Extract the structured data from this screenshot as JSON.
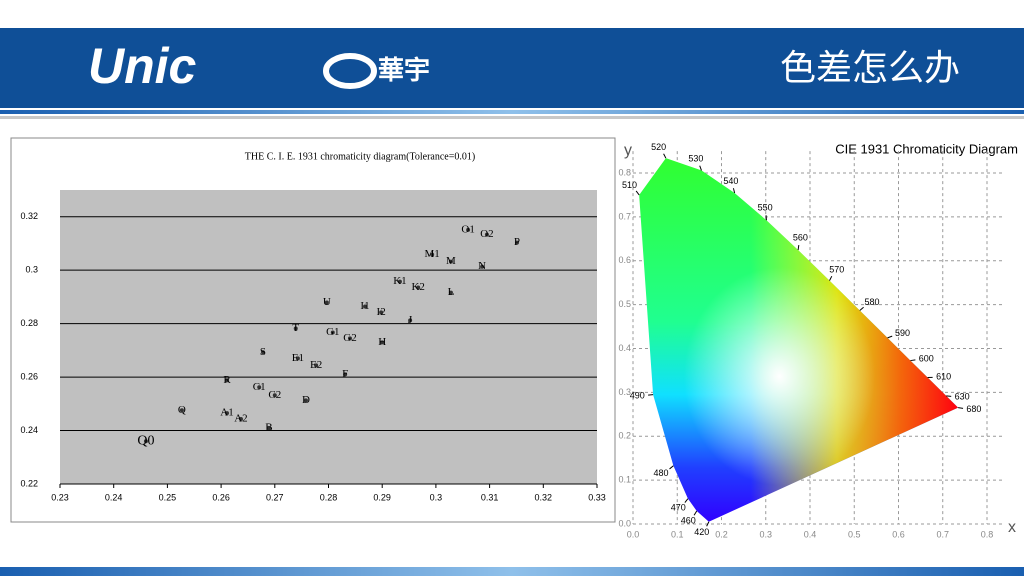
{
  "header": {
    "logo": "Unic",
    "logo_cn": "華宇",
    "title": "色差怎么办"
  },
  "chart_data": [
    {
      "type": "region-map",
      "title": "THE C. I. E. 1931 chromaticity diagram(Tolerance=0.01)",
      "xlim": [
        0.23,
        0.33
      ],
      "xticks": [
        0.23,
        0.24,
        0.25,
        0.26,
        0.27,
        0.28,
        0.29,
        0.3,
        0.31,
        0.32,
        0.33
      ],
      "ylim": [
        0.22,
        0.33
      ],
      "yticks": [
        0.22,
        0.24,
        0.26,
        0.28,
        0.3,
        0.32
      ],
      "grid": true,
      "background": "#c0c0c0",
      "color": "#333333",
      "regions": {
        "labels": [
          "Q0",
          "Q",
          "R",
          "S",
          "T",
          "U",
          "A1",
          "A2",
          "B",
          "C1",
          "C2",
          "D",
          "E1",
          "E2",
          "F",
          "G1",
          "G2",
          "H",
          "I1",
          "I2",
          "J",
          "K1",
          "K2",
          "L",
          "M1",
          "M",
          "N",
          "O1",
          "O2",
          "P"
        ],
        "x": [
          0.246,
          0.2527,
          0.2611,
          0.2678,
          0.2739,
          0.2797,
          0.2611,
          0.2637,
          0.2689,
          0.2671,
          0.27,
          0.2758,
          0.2743,
          0.2777,
          0.2831,
          0.2808,
          0.284,
          0.29,
          0.2868,
          0.2898,
          0.2952,
          0.2933,
          0.2967,
          0.3028,
          0.2993,
          0.3028,
          0.3086,
          0.306,
          0.3095,
          0.3151
        ],
        "y": [
          0.236,
          0.2476,
          0.2588,
          0.2693,
          0.2782,
          0.2879,
          0.2465,
          0.2443,
          0.2409,
          0.2562,
          0.2532,
          0.2513,
          0.267,
          0.2644,
          0.261,
          0.2767,
          0.2745,
          0.273,
          0.2864,
          0.2842,
          0.2812,
          0.2957,
          0.2935,
          0.2916,
          0.3058,
          0.3032,
          0.3013,
          0.3151,
          0.3133,
          0.3103
        ]
      }
    },
    {
      "type": "chromaticity",
      "title": "CIE 1931 Chromaticity Diagram",
      "x_label": "x",
      "y_label": "y",
      "xlim": [
        0,
        0.84
      ],
      "xticks": [
        {
          "value": 0,
          "label": "0.0"
        },
        0.1,
        0.2,
        0.3,
        0.4,
        0.5,
        0.6,
        0.7,
        0.8
      ],
      "ylim": [
        0,
        0.85
      ],
      "yticks": [
        {
          "value": 0,
          "label": "0.0"
        },
        0.1,
        0.2,
        0.3,
        0.4,
        0.5,
        0.6,
        0.7,
        0.8
      ],
      "grid": true,
      "locus": {
        "labels": [
          420,
          460,
          470,
          480,
          490,
          510,
          520,
          530,
          540,
          550,
          560,
          570,
          580,
          590,
          600,
          610,
          630,
          680
        ],
        "x": [
          0.1714,
          0.144,
          0.1241,
          0.0913,
          0.0454,
          0.0139,
          0.0743,
          0.1547,
          0.2296,
          0.3016,
          0.3731,
          0.4441,
          0.5125,
          0.5752,
          0.627,
          0.6658,
          0.7079,
          0.7347
        ],
        "y": [
          0.0051,
          0.0297,
          0.0578,
          0.1327,
          0.295,
          0.75,
          0.8338,
          0.8059,
          0.7543,
          0.6923,
          0.6245,
          0.5547,
          0.4866,
          0.4242,
          0.3725,
          0.334,
          0.292,
          0.2653
        ]
      }
    }
  ]
}
